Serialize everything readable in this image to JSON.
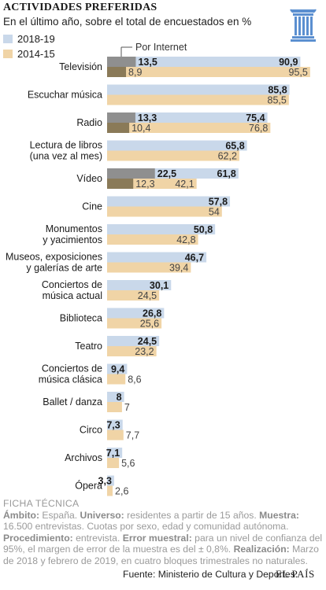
{
  "header": {
    "title": "ACTIVIDADES PREFERIDAS",
    "subtitle": "En el último año, sobre el total de encuestados en %"
  },
  "legend": {
    "items": [
      "2018-19",
      "2014-15"
    ],
    "internet_label": "Por Internet"
  },
  "colors": {
    "series_2018": "#c9d8ea",
    "series_2014": "#f0d4a6",
    "internet_2018": "#8f8f8f",
    "internet_2014": "#8a7a58"
  },
  "chart_data": {
    "type": "bar",
    "orientation": "horizontal",
    "categories": [
      [
        "Televisión"
      ],
      [
        "Escuchar música"
      ],
      [
        "Radio"
      ],
      [
        "Lectura de libros",
        "(una vez al mes)"
      ],
      [
        "Vídeo"
      ],
      [
        "Cine"
      ],
      [
        "Monumentos",
        "y yacimientos"
      ],
      [
        "Museos, exposiciones",
        "y galerías de arte"
      ],
      [
        "Conciertos de",
        "música actual"
      ],
      [
        "Biblioteca"
      ],
      [
        "Teatro"
      ],
      [
        "Conciertos de",
        "música clásica"
      ],
      [
        "Ballet / danza"
      ],
      [
        "Circo"
      ],
      [
        "Archivos"
      ],
      [
        "Ópera"
      ]
    ],
    "series": [
      {
        "name": "2018-19",
        "values": [
          90.9,
          85.8,
          75.4,
          65.8,
          61.8,
          57.8,
          50.8,
          46.7,
          30.1,
          26.8,
          24.5,
          9.4,
          8,
          7.3,
          7.1,
          3.3
        ],
        "labels": [
          "90,9",
          "85,8",
          "75,4",
          "65,8",
          "61,8",
          "57,8",
          "50,8",
          "46,7",
          "30,1",
          "26,8",
          "24,5",
          "9,4",
          "8",
          "7,3",
          "7,1",
          "3,3"
        ]
      },
      {
        "name": "2014-15",
        "values": [
          95.5,
          85.5,
          76.8,
          62.2,
          42.1,
          54,
          42.8,
          39.4,
          24.5,
          25.6,
          23.2,
          8.6,
          7,
          7.7,
          5.6,
          2.6
        ],
        "labels": [
          "95,5",
          "85,5",
          "76,8",
          "62,2",
          "42,1",
          "54",
          "42,8",
          "39,4",
          "24,5",
          "25,6",
          "23,2",
          "8,6",
          "7",
          "7,7",
          "5,6",
          "2,6"
        ]
      }
    ],
    "internet": [
      {
        "index": 0,
        "v2018": 13.5,
        "l2018": "13,5",
        "v2014": 8.9,
        "l2014": "8,9"
      },
      {
        "index": 2,
        "v2018": 13.3,
        "l2018": "13,3",
        "v2014": 10.4,
        "l2014": "10,4"
      },
      {
        "index": 4,
        "v2018": 22.5,
        "l2018": "22,5",
        "v2014": 12.3,
        "l2014": "12,3"
      }
    ],
    "xlim": [
      0,
      100
    ],
    "grid": false
  },
  "footer": {
    "fiche_title": "FICHA TÉCNICA",
    "fiche_parts": [
      {
        "label": "Ámbito:",
        "text": " España. "
      },
      {
        "label": "Universo:",
        "text": " residentes a partir de 15 años. "
      },
      {
        "label": "Muestra:",
        "text": " 16.500 entrevistas. Cuotas por sexo, edad y comunidad autónoma. "
      },
      {
        "label": "Procedimiento:",
        "text": " entrevista. "
      },
      {
        "label": "Error muestral:",
        "text": " para un nivel de confianza del 95%, el margen de error de la muestra es del ± 0,8%. "
      },
      {
        "label": "Realización:",
        "text": " Marzo de 2018 y febrero de 2019, en cuatro bloques trimestrales no naturales."
      }
    ],
    "source": "Fuente: Ministerio de Cultura y Deportes.",
    "brand": "EL PAÍS"
  }
}
